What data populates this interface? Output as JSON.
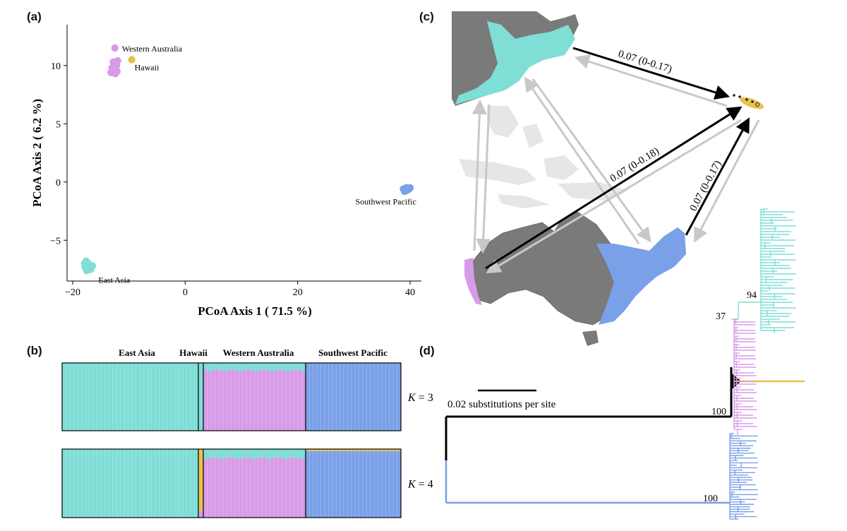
{
  "panels": {
    "a": {
      "label": "(a)",
      "chart_data": {
        "type": "scatter",
        "xlabel": "PCoA Axis 1 ( 71.5 %)",
        "ylabel": "PCoA Axis 2 ( 6.2 %)",
        "xlim": [
          -21,
          42
        ],
        "ylim": [
          -8.5,
          13.5
        ],
        "xticks": [
          "−20",
          "0",
          "20",
          "40"
        ],
        "yticks": [
          "10",
          "5",
          "0",
          "−5"
        ],
        "grid": false,
        "series": [
          {
            "name": "Western Australia",
            "color": "#d89be8",
            "points": [
              [
                -12.5,
                11.5
              ],
              [
                -12.8,
                10.3
              ],
              [
                -12.2,
                10.0
              ],
              [
                -13.0,
                9.8
              ],
              [
                -12.6,
                9.6
              ],
              [
                -12.1,
                9.5
              ],
              [
                -13.2,
                9.4
              ],
              [
                -12.4,
                9.3
              ],
              [
                -12.8,
                9.9
              ],
              [
                -12.0,
                10.4
              ]
            ]
          },
          {
            "name": "Hawaii",
            "color": "#e8c24a",
            "points": [
              [
                -9.5,
                10.5
              ]
            ]
          },
          {
            "name": "Southwest Pacific",
            "color": "#7aa0e8",
            "points": [
              [
                38.8,
                -0.6
              ],
              [
                39.3,
                -0.5
              ],
              [
                39.8,
                -0.6
              ],
              [
                39.0,
                -0.8
              ],
              [
                39.5,
                -0.7
              ],
              [
                40.0,
                -0.5
              ]
            ]
          },
          {
            "name": "East Asia",
            "color": "#7fded6",
            "points": [
              [
                -17.6,
                -6.8
              ],
              [
                -17.2,
                -7.0
              ],
              [
                -17.8,
                -7.3
              ],
              [
                -17.0,
                -7.4
              ],
              [
                -16.5,
                -7.2
              ],
              [
                -17.5,
                -7.6
              ],
              [
                -17.9,
                -7.0
              ],
              [
                -16.8,
                -7.5
              ]
            ]
          }
        ]
      }
    },
    "b": {
      "label": "(b)",
      "chart_data": {
        "type": "bar",
        "stacked": true,
        "groups": [
          "East Asia",
          "Hawaii",
          "Western Australia",
          "Southwest Pacific"
        ],
        "rows": [
          {
            "label": "K = 3",
            "k_var": "K",
            "k_val": "= 3",
            "segments": [
              {
                "group": "East Asia",
                "composition": [
                  {
                    "color": "#7fded6",
                    "fraction": 1.0
                  }
                ]
              },
              {
                "group": "Hawaii",
                "composition": [
                  {
                    "color": "#7fded6",
                    "fraction": 1.0
                  }
                ]
              },
              {
                "group": "Western Australia",
                "composition": [
                  {
                    "color": "#7fded6",
                    "fraction": 0.1
                  },
                  {
                    "color": "#d89be8",
                    "fraction": 0.9
                  }
                ]
              },
              {
                "group": "Southwest Pacific",
                "composition": [
                  {
                    "color": "#7aa0e8",
                    "fraction": 1.0
                  }
                ]
              }
            ]
          },
          {
            "label": "K = 4",
            "k_var": "K",
            "k_val": "= 4",
            "segments": [
              {
                "group": "East Asia",
                "composition": [
                  {
                    "color": "#7fded6",
                    "fraction": 1.0
                  }
                ]
              },
              {
                "group": "Hawaii",
                "composition": [
                  {
                    "color": "#e8c24a",
                    "fraction": 0.9
                  },
                  {
                    "color": "#d89be8",
                    "fraction": 0.1
                  }
                ]
              },
              {
                "group": "Western Australia",
                "composition": [
                  {
                    "color": "#7fded6",
                    "fraction": 0.12
                  },
                  {
                    "color": "#d89be8",
                    "fraction": 0.88
                  }
                ]
              },
              {
                "group": "Southwest Pacific",
                "composition": [
                  {
                    "color": "#e8c24a",
                    "fraction": 0.03
                  },
                  {
                    "color": "#7aa0e8",
                    "fraction": 0.97
                  }
                ]
              }
            ]
          }
        ]
      }
    },
    "c": {
      "label": "(c)",
      "migration_labels": [
        "0.07 (0-0.17)",
        "0.07 (0-0.18)",
        "0.07 (0-0.17)"
      ]
    },
    "d": {
      "label": "(d)",
      "scale_label": "0.02 substitutions per site",
      "support_values": [
        "94",
        "37",
        "100",
        "100"
      ]
    }
  },
  "colors": {
    "east_asia": "#7fded6",
    "western_australia": "#d89be8",
    "hawaii": "#e8c24a",
    "southwest_pacific": "#7aa0e8",
    "land": "#7a7a7a",
    "arrow_strong": "#000000",
    "arrow_weak": "#c8c8c8"
  }
}
